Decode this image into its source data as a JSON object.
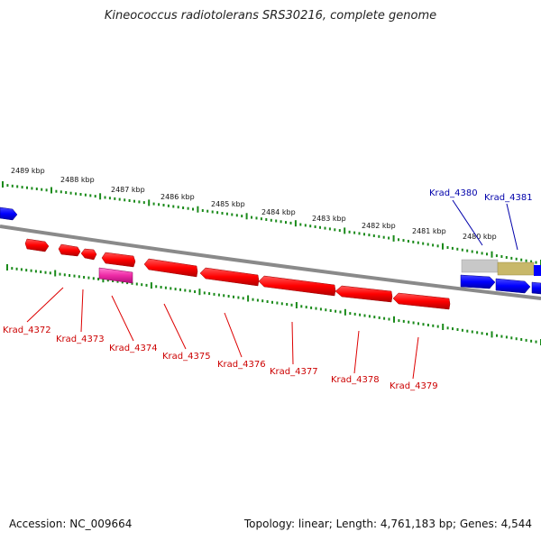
{
  "title": "Kineococcus radiotolerans SRS30216, complete genome",
  "footer": {
    "accession": "Accession: NC_009664",
    "summary": "Topology: linear; Length: 4,761,183 bp; Genes: 4,544"
  },
  "ruler": [
    "2489 kbp",
    "2488 kbp",
    "2487 kbp",
    "2486 kbp",
    "2485 kbp",
    "2484 kbp",
    "2483 kbp",
    "2482 kbp",
    "2481 kbp",
    "2480 kbp"
  ],
  "genes_bottom": [
    "Krad_4372",
    "Krad_4373",
    "Krad_4374",
    "Krad_4375",
    "Krad_4376",
    "Krad_4377",
    "Krad_4378",
    "Krad_4379"
  ],
  "genes_top": [
    "Krad_4380",
    "Krad_4381"
  ],
  "colors": {
    "reverse_strand": "#ff0000",
    "forward_strand": "#0000ff",
    "rna": "#ff33aa",
    "ruler": "#1a8a1a"
  }
}
